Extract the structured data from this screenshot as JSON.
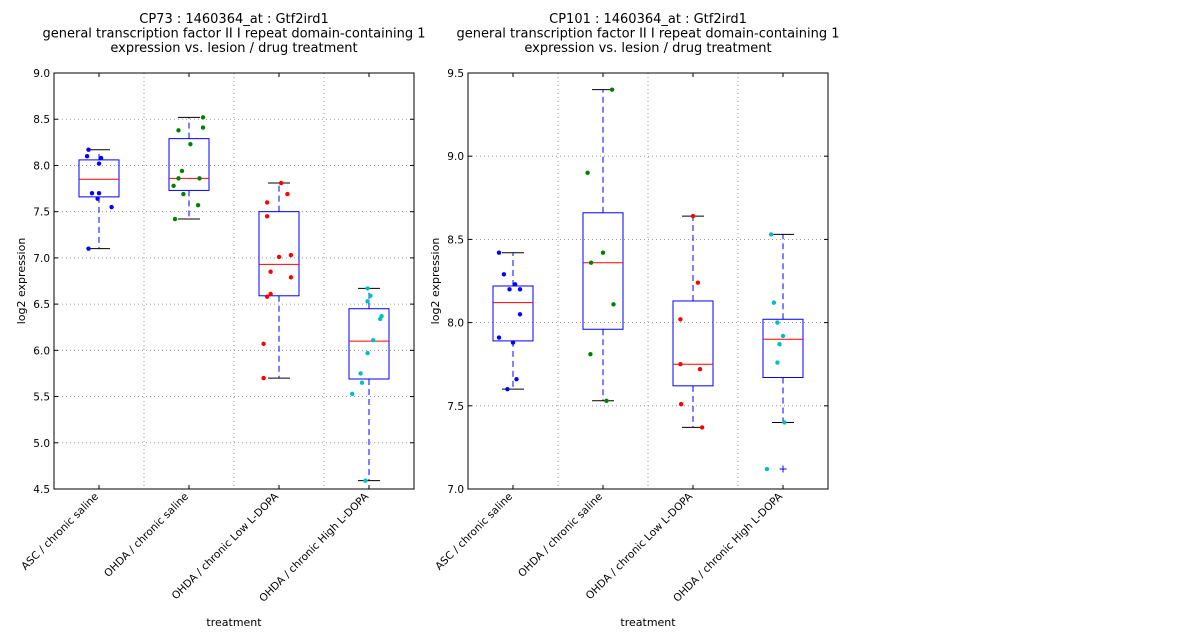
{
  "chart_data": [
    {
      "type": "box",
      "title_lines": [
        "CP73 : 1460364_at : Gtf2ird1",
        "general transcription factor II I repeat domain-containing 1",
        "expression vs. lesion / drug treatment"
      ],
      "xlabel": "treatment",
      "ylabel": "log2 expression",
      "ylim": [
        4.5,
        9.0
      ],
      "yticks": [
        "4.5",
        "5.0",
        "5.5",
        "6.0",
        "6.5",
        "7.0",
        "7.5",
        "8.0",
        "8.5",
        "9.0"
      ],
      "grid": true,
      "categories": [
        "ASC / chronic saline",
        "OHDA / chronic saline",
        "OHDA / chronic Low L-DOPA",
        "OHDA / chronic High L-DOPA"
      ],
      "point_colors": [
        "#0000ff",
        "#008000",
        "#ff0000",
        "#00bfbf"
      ],
      "boxes": [
        {
          "whisker_low": 7.1,
          "q1": 7.66,
          "median": 7.85,
          "q3": 8.06,
          "whisker_high": 8.17,
          "outliers": []
        },
        {
          "whisker_low": 7.42,
          "q1": 7.73,
          "median": 7.86,
          "q3": 8.29,
          "whisker_high": 8.52,
          "outliers": []
        },
        {
          "whisker_low": 5.7,
          "q1": 6.59,
          "median": 6.93,
          "q3": 7.5,
          "whisker_high": 7.81,
          "outliers": []
        },
        {
          "whisker_low": 4.59,
          "q1": 5.69,
          "median": 6.1,
          "q3": 6.45,
          "whisker_high": 6.67,
          "outliers": []
        }
      ],
      "points": [
        [
          8.17,
          8.1,
          8.08,
          8.02,
          7.7,
          7.7,
          7.64,
          7.55,
          7.1
        ],
        [
          8.52,
          8.41,
          8.38,
          8.23,
          7.94,
          7.86,
          7.86,
          7.78,
          7.69,
          7.57,
          7.42
        ],
        [
          7.81,
          7.69,
          7.6,
          7.45,
          7.03,
          7.01,
          6.85,
          6.79,
          6.61,
          6.58,
          6.07,
          5.7
        ],
        [
          6.67,
          6.59,
          6.53,
          6.37,
          6.34,
          6.11,
          5.97,
          5.75,
          5.65,
          5.53,
          4.59
        ]
      ],
      "jitter": [
        [
          -0.15,
          -0.17,
          0.03,
          0.0,
          -0.1,
          0.0,
          -0.02,
          0.18,
          -0.15
        ],
        [
          0.2,
          0.2,
          -0.15,
          0.02,
          -0.1,
          -0.15,
          0.15,
          -0.22,
          -0.08,
          0.13,
          -0.2
        ],
        [
          0.03,
          0.12,
          -0.17,
          -0.17,
          0.17,
          0.0,
          -0.12,
          0.17,
          -0.12,
          -0.17,
          -0.22,
          -0.22
        ],
        [
          -0.02,
          0.02,
          -0.02,
          0.18,
          0.16,
          0.06,
          -0.02,
          -0.12,
          -0.1,
          -0.24,
          -0.05
        ]
      ]
    },
    {
      "type": "box",
      "title_lines": [
        "CP101 : 1460364_at : Gtf2ird1",
        "general transcription factor II I repeat domain-containing 1",
        "expression vs. lesion / drug treatment"
      ],
      "xlabel": "treatment",
      "ylabel": "log2 expression",
      "ylim": [
        7.0,
        9.5
      ],
      "yticks": [
        "7.0",
        "7.5",
        "8.0",
        "8.5",
        "9.0",
        "9.5"
      ],
      "grid": true,
      "categories": [
        "ASC / chronic saline",
        "OHDA / chronic saline",
        "OHDA / chronic Low L-DOPA",
        "OHDA / chronic High L-DOPA"
      ],
      "point_colors": [
        "#0000ff",
        "#008000",
        "#ff0000",
        "#00bfbf"
      ],
      "boxes": [
        {
          "whisker_low": 7.6,
          "q1": 7.89,
          "median": 8.12,
          "q3": 8.22,
          "whisker_high": 8.42,
          "outliers": []
        },
        {
          "whisker_low": 7.53,
          "q1": 7.96,
          "median": 8.36,
          "q3": 8.66,
          "whisker_high": 9.4,
          "outliers": []
        },
        {
          "whisker_low": 7.37,
          "q1": 7.62,
          "median": 7.75,
          "q3": 8.13,
          "whisker_high": 8.64,
          "outliers": []
        },
        {
          "whisker_low": 7.4,
          "q1": 7.67,
          "median": 7.9,
          "q3": 8.02,
          "whisker_high": 8.53,
          "outliers": [
            7.12
          ]
        }
      ],
      "points": [
        [
          8.42,
          8.29,
          8.23,
          8.2,
          8.2,
          8.05,
          7.91,
          7.88,
          7.66,
          7.6
        ],
        [
          9.4,
          8.9,
          8.42,
          8.36,
          8.11,
          7.81,
          7.53
        ],
        [
          8.64,
          8.24,
          8.02,
          7.75,
          7.72,
          7.51,
          7.37
        ],
        [
          8.53,
          8.12,
          8.0,
          7.92,
          7.87,
          7.76,
          7.4,
          7.12
        ]
      ],
      "jitter": [
        [
          -0.2,
          -0.13,
          0.03,
          -0.05,
          0.1,
          0.1,
          -0.2,
          0.0,
          0.05,
          -0.08
        ],
        [
          0.13,
          -0.22,
          0.0,
          -0.17,
          0.15,
          -0.18,
          0.05
        ],
        [
          0.0,
          0.07,
          -0.18,
          -0.18,
          0.1,
          -0.17,
          0.13
        ],
        [
          -0.17,
          -0.13,
          -0.08,
          0.0,
          -0.05,
          -0.08,
          0.02,
          -0.23
        ]
      ]
    }
  ]
}
